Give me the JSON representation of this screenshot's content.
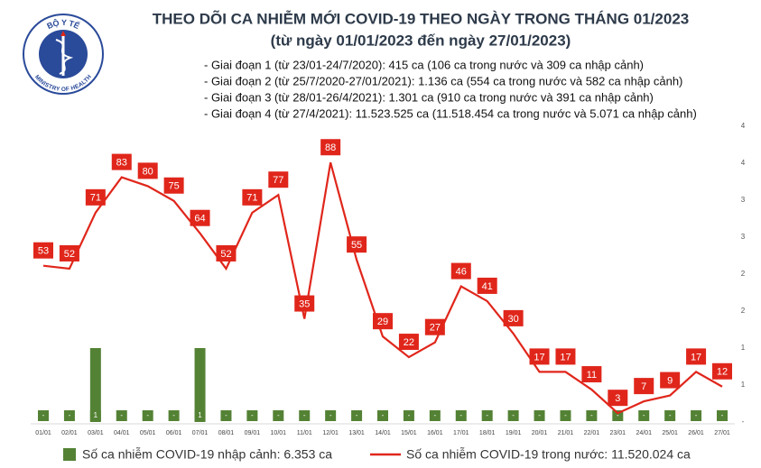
{
  "logo": {
    "top": "BỘ Y TẾ",
    "bottom": "MINISTRY OF HEALTH"
  },
  "chart_data": {
    "type": "combo",
    "title": "THEO DÕI CA NHIỄM MỚI COVID-19 THEO NGÀY TRONG THÁNG 01/2023",
    "subtitle": "(từ ngày 01/01/2023 đến ngày 27/01/2023)",
    "notes": [
      "- Giai đoạn 1 (từ 23/01-24/7/2020): 415 ca (106 ca trong nước và 309 ca nhập cảnh)",
      "- Giai đoạn 2 (từ 25/7/2020-27/01/2021): 1.136 ca (554 ca trong nước và 582 ca nhập cảnh)",
      "- Giai đoạn 3 (từ 28/01-26/4/2021): 1.301 ca (910 ca trong nước và 391 ca nhập cảnh)",
      "- Giai đoạn 4 (từ 27/4/2021): 11.523.525 ca (11.518.454 ca trong nước và 5.071 ca nhập cảnh)"
    ],
    "categories": [
      "01/01",
      "02/01",
      "03/01",
      "04/01",
      "05/01",
      "06/01",
      "07/01",
      "08/01",
      "09/01",
      "10/01",
      "11/01",
      "12/01",
      "13/01",
      "14/01",
      "15/01",
      "16/01",
      "17/01",
      "18/01",
      "19/01",
      "20/01",
      "21/01",
      "22/01",
      "23/01",
      "24/01",
      "25/01",
      "26/01",
      "27/01"
    ],
    "series": [
      {
        "name": "Số ca nhiễm COVID-19 nhập cảnh: 6.353 ca",
        "type": "bar",
        "axis": "y2",
        "color": "#548235",
        "values": [
          0,
          0,
          1,
          0,
          0,
          0,
          1,
          0,
          0,
          0,
          0,
          0,
          0,
          0,
          0,
          0,
          0,
          0,
          0,
          0,
          0,
          0,
          0,
          0,
          0,
          0,
          0
        ],
        "value_labels": [
          "-",
          "-",
          "1",
          "-",
          "-",
          "-",
          "1",
          "-",
          "-",
          "-",
          "-",
          "-",
          "-",
          "-",
          "-",
          "-",
          "-",
          "-",
          "-",
          "-",
          "-",
          "-",
          "-",
          "-",
          "-",
          "-",
          "-"
        ]
      },
      {
        "name": "Số ca nhiễm COVID-19 trong nước: 11.520.024 ca",
        "type": "line",
        "color": "#e0261b",
        "values": [
          53,
          52,
          71,
          83,
          80,
          75,
          64,
          52,
          71,
          77,
          35,
          88,
          55,
          29,
          22,
          27,
          46,
          41,
          30,
          17,
          17,
          11,
          3,
          7,
          9,
          17,
          12
        ]
      }
    ],
    "ylim": [
      0,
      100
    ],
    "y2lim": [
      0,
      4
    ],
    "y2ticks": [
      {
        "value": 0,
        "label": "-"
      },
      {
        "value": 0.5,
        "label": "1"
      },
      {
        "value": 1,
        "label": "1"
      },
      {
        "value": 1.5,
        "label": "2"
      },
      {
        "value": 2,
        "label": "2"
      },
      {
        "value": 2.5,
        "label": "3"
      },
      {
        "value": 3,
        "label": "3"
      },
      {
        "value": 3.5,
        "label": "4"
      },
      {
        "value": 4,
        "label": "4"
      }
    ],
    "grid": false
  }
}
